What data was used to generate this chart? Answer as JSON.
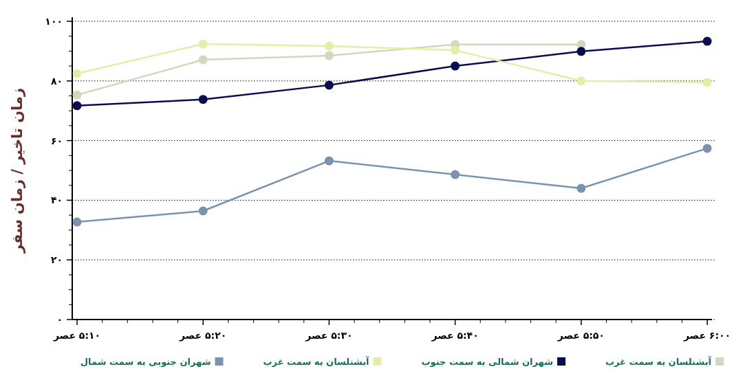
{
  "chart_data": {
    "type": "line",
    "ylabel": "زمان تاخیر / زمان سفر",
    "categories": [
      "۵:۱۰ عصر",
      "۵:۲۰ عصر",
      "۵:۳۰ عصر",
      "۵:۴۰ عصر",
      "۵:۵۰ عصر",
      "۶:۰۰ عصر"
    ],
    "series": [
      {
        "name": "آبشنلسان به سمت غرب",
        "color": "#d4d6c0",
        "values": [
          75.3,
          87.1,
          88.5,
          92.2,
          92.2,
          null
        ]
      },
      {
        "name": "شهران شمالی به سمت جنوب",
        "color": "#0b0b50",
        "values": [
          71.7,
          73.8,
          78.6,
          85,
          89.9,
          93.3
        ]
      },
      {
        "name": "آبشنلسان به سمت غرب",
        "color": "#e3efa6",
        "values": [
          82.5,
          92.4,
          91.7,
          90.3,
          80,
          79.5
        ]
      },
      {
        "name": "شهران جنوبی به سمت شمال",
        "color": "#7a92ac",
        "values": [
          32.7,
          36.4,
          53.2,
          48.6,
          44,
          57.4
        ]
      }
    ],
    "ylim": [
      0,
      100
    ],
    "yticks": [
      {
        "value": 0,
        "label": "۰"
      },
      {
        "value": 20,
        "label": "۲۰"
      },
      {
        "value": 40,
        "label": "۴۰"
      },
      {
        "value": 60,
        "label": "۶۰"
      },
      {
        "value": 80,
        "label": "۸۰"
      },
      {
        "value": 100,
        "label": "۱۰۰"
      }
    ],
    "grid": "y",
    "legend": "bottom",
    "marker": "circle",
    "line_style": "solid"
  }
}
